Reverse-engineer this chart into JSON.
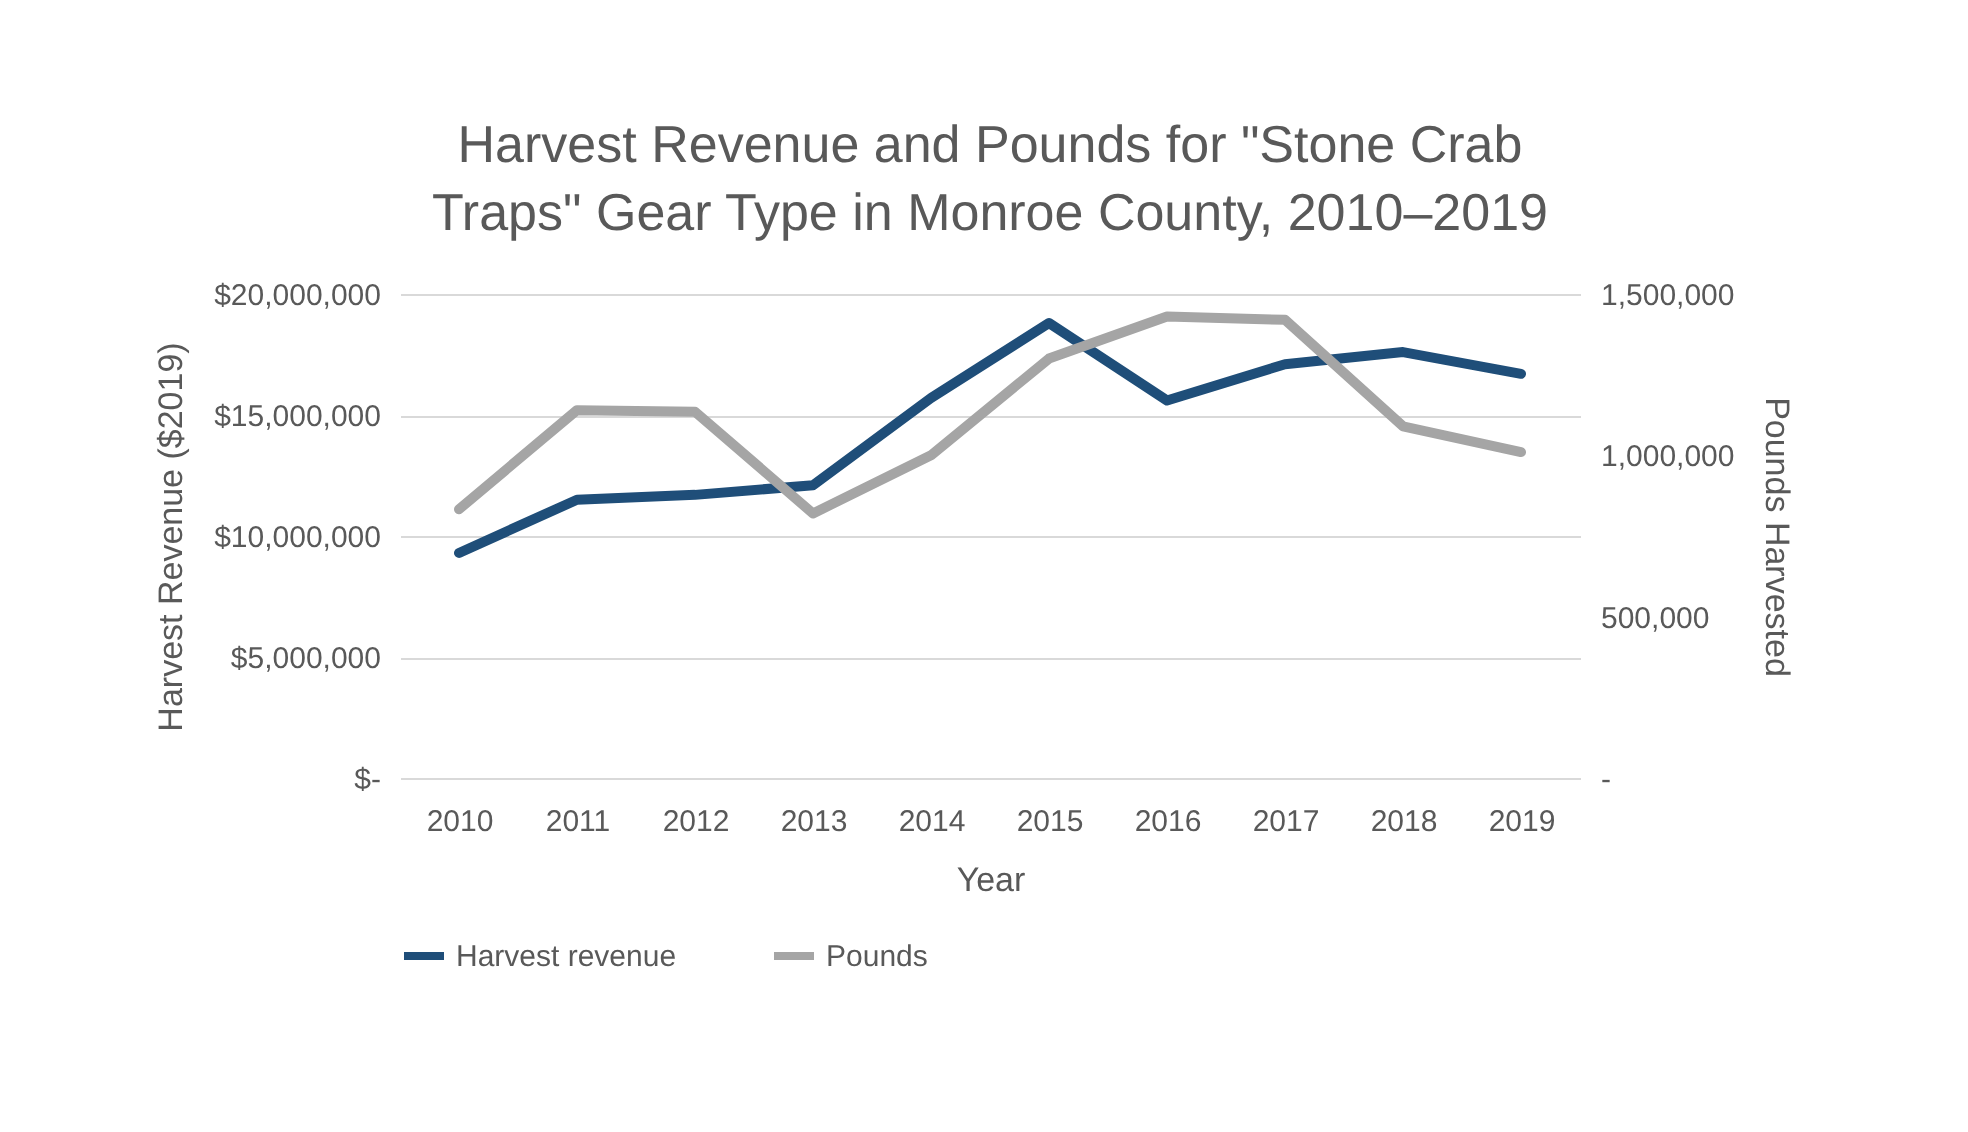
{
  "chart_data": {
    "type": "line",
    "title": "Harvest Revenue and Pounds for \"Stone Crab Traps\" Gear Type in Monroe County, 2010–2019",
    "xlabel": "Year",
    "ylabel": "Harvest Revenue ($2019)",
    "y2label": "Pounds Harvested",
    "categories": [
      "2010",
      "2011",
      "2012",
      "2013",
      "2014",
      "2015",
      "2016",
      "2017",
      "2018",
      "2019"
    ],
    "series": [
      {
        "name": "Harvest revenue",
        "color": "#1f4e79",
        "values": [
          9300000,
          11500000,
          11700000,
          12100000,
          15700000,
          18800000,
          15600000,
          17100000,
          17600000,
          16700000
        ]
      },
      {
        "name": "Pounds",
        "color": "#a5a5a5",
        "axis": "y2",
        "values": [
          833000,
          1140000,
          1135000,
          820000,
          1000000,
          1300000,
          1430000,
          1420000,
          1090000,
          1010000
        ]
      }
    ],
    "ylim": [
      0,
      20000000
    ],
    "yticks": [
      {
        "value": 0,
        "label": "$-"
      },
      {
        "value": 5000000,
        "label": "$5,000,000"
      },
      {
        "value": 10000000,
        "label": "$10,000,000"
      },
      {
        "value": 15000000,
        "label": "$15,000,000"
      },
      {
        "value": 20000000,
        "label": "$20,000,000"
      }
    ],
    "y2lim": [
      0,
      1500000
    ],
    "y2ticks": [
      {
        "value": 0,
        "label": "-"
      },
      {
        "value": 500000,
        "label": "500,000"
      },
      {
        "value": 1000000,
        "label": "1,000,000"
      },
      {
        "value": 1500000,
        "label": "1,500,000"
      }
    ],
    "grid": "y",
    "legend": "bottom",
    "marker": "none",
    "line_style": "solid"
  }
}
